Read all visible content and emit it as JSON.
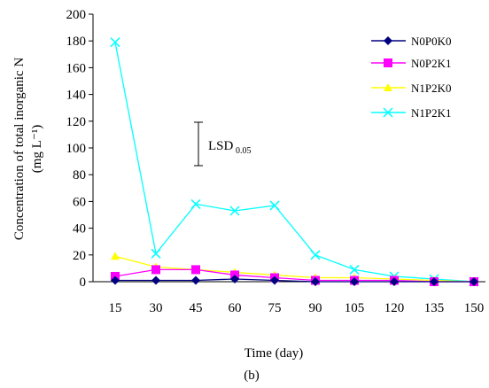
{
  "chart_data": {
    "type": "line",
    "x": [
      15,
      30,
      45,
      60,
      75,
      90,
      105,
      120,
      135,
      150
    ],
    "series": [
      {
        "name": "N0P0K0",
        "color": "#000080",
        "marker": "diamond",
        "values": [
          1,
          1,
          1,
          2,
          1,
          0,
          0,
          0,
          0,
          0
        ]
      },
      {
        "name": "N0P2K1",
        "color": "#ff00ff",
        "marker": "square",
        "values": [
          4,
          9,
          9,
          5,
          3,
          1,
          1,
          1,
          0,
          0
        ]
      },
      {
        "name": "N1P2K0",
        "color": "#ffff00",
        "marker": "triangle",
        "values": [
          19,
          11,
          9,
          7,
          5,
          3,
          3,
          2,
          1,
          0
        ]
      },
      {
        "name": "N1P2K1",
        "color": "#00ffff",
        "marker": "x",
        "values": [
          179,
          21,
          58,
          53,
          57,
          20,
          9,
          4,
          2,
          0
        ]
      }
    ],
    "xlabel": "Time (day)",
    "ylabel_line1": "Concentration of total inorganic N",
    "ylabel_line2": "(mg L⁻¹)",
    "y_ticks": [
      "0",
      "20",
      "40",
      "60",
      "80",
      "100",
      "120",
      "140",
      "160",
      "180",
      "200"
    ],
    "x_ticks": [
      "15",
      "30",
      "45",
      "60",
      "75",
      "90",
      "105",
      "120",
      "135",
      "150"
    ],
    "ylim": [
      0,
      200
    ],
    "grid": false,
    "legend_position": "top-right",
    "lsd": {
      "label": "LSD",
      "subscript": "0.05",
      "value": 21
    },
    "panel_label": "(b)"
  }
}
